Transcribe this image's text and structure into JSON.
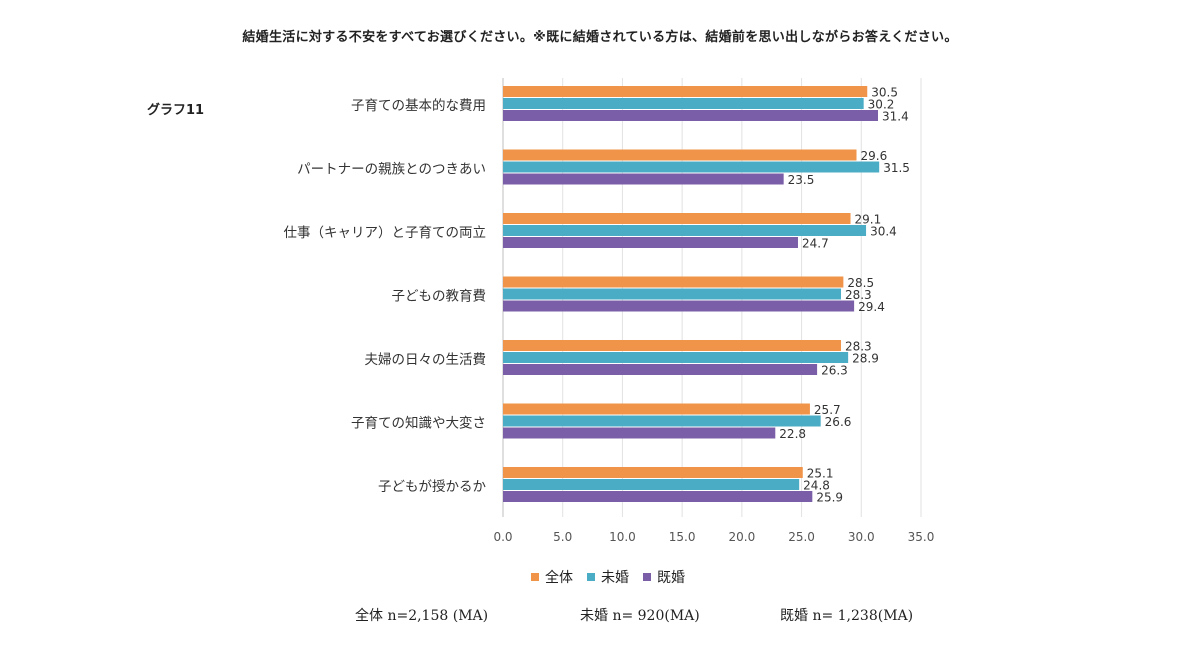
{
  "title": "結婚生活に対する不安をすべてお選びください。※既に結婚されている方は、結婚前を思い出しながらお答えください。",
  "graph_label": "グラフ11",
  "notes": [
    "全体 n=2,158 (MA)",
    "未婚 n= 920(MA)",
    "既婚 n= 1,238(MA)"
  ],
  "chart_data": {
    "type": "bar",
    "orientation": "horizontal",
    "categories": [
      "子育ての基本的な費用",
      "パートナーの親族とのつきあい",
      "仕事（キャリア）と子育ての両立",
      "子どもの教育費",
      "夫婦の日々の生活費",
      "子育ての知識や大変さ",
      "子どもが授かるか"
    ],
    "series": [
      {
        "name": "全体",
        "color": "#f0944a",
        "values": [
          30.5,
          29.6,
          29.1,
          28.5,
          28.3,
          25.7,
          25.1
        ],
        "labels": [
          "30.5",
          "29.6",
          "29.1",
          "28.5",
          "28.3",
          "25.7",
          "25.1"
        ]
      },
      {
        "name": "未婚",
        "color": "#4bacc6",
        "values": [
          30.2,
          31.5,
          30.4,
          28.3,
          28.9,
          26.6,
          24.8
        ],
        "labels": [
          "30.2",
          "31.5",
          "30.4",
          "28.3",
          "28.9",
          "26.6",
          "24.8"
        ]
      },
      {
        "name": "既婚",
        "color": "#7b5ea8",
        "values": [
          31.4,
          23.5,
          24.7,
          29.4,
          26.3,
          22.8,
          25.9
        ],
        "labels": [
          "31.4",
          "23.5",
          "24.7",
          "29.4",
          "26.3",
          "22.8",
          "25.9"
        ]
      }
    ],
    "xlim": [
      0,
      35
    ],
    "ticks": [
      "0.0",
      "5.0",
      "10.0",
      "15.0",
      "20.0",
      "25.0",
      "30.0",
      "35.0"
    ],
    "tick_values": [
      0,
      5,
      10,
      15,
      20,
      25,
      30,
      35
    ],
    "grid": true,
    "legend_position": "bottom"
  }
}
